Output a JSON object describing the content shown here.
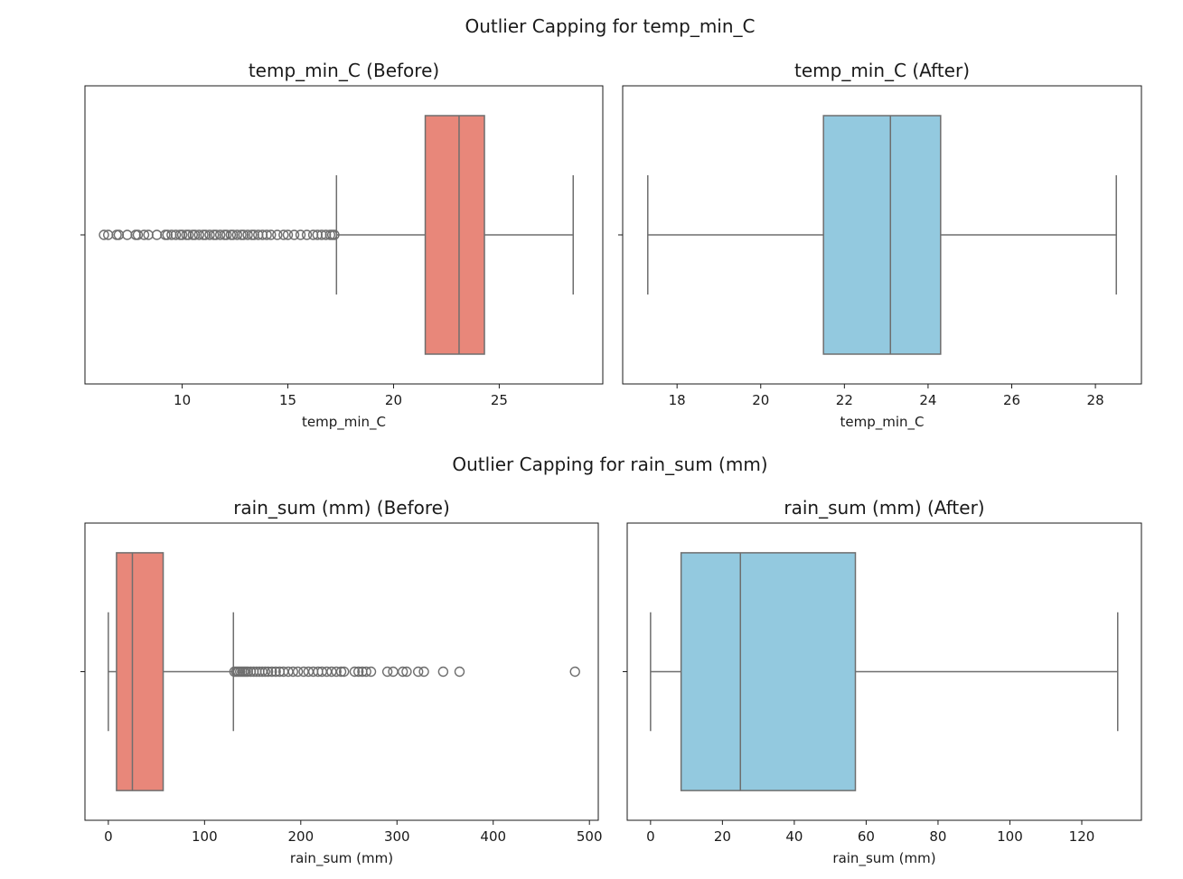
{
  "figure": {
    "sections": [
      {
        "suptitle": "Outlier Capping for temp_min_C"
      },
      {
        "suptitle": "Outlier Capping for rain_sum (mm)"
      }
    ]
  },
  "chart_data": [
    {
      "type": "box",
      "title": "temp_min_C (Before)",
      "xlabel": "temp_min_C",
      "xlim": [
        5.4,
        29.9
      ],
      "xticks": [
        10,
        15,
        20,
        25
      ],
      "color": "#e8877a",
      "box": {
        "whisker_low": 17.3,
        "q1": 21.5,
        "median": 23.1,
        "q3": 24.3,
        "whisker_high": 28.5
      },
      "outliers": [
        6.3,
        6.5,
        6.9,
        7.0,
        7.4,
        7.8,
        7.9,
        8.2,
        8.4,
        8.8,
        9.2,
        9.3,
        9.5,
        9.7,
        9.9,
        10.0,
        10.2,
        10.3,
        10.5,
        10.6,
        10.8,
        11.0,
        11.1,
        11.3,
        11.5,
        11.6,
        11.8,
        12.0,
        12.1,
        12.3,
        12.4,
        12.6,
        12.8,
        12.9,
        13.1,
        13.3,
        13.4,
        13.6,
        13.8,
        14.0,
        14.2,
        14.5,
        14.8,
        15.0,
        15.3,
        15.6,
        15.9,
        16.2,
        16.4,
        16.6,
        16.8,
        17.0,
        17.1,
        17.2
      ]
    },
    {
      "type": "box",
      "title": "temp_min_C (After)",
      "xlabel": "temp_min_C",
      "xlim": [
        16.7,
        29.1
      ],
      "xticks": [
        18,
        20,
        22,
        24,
        26,
        28
      ],
      "color": "#93c9df",
      "box": {
        "whisker_low": 17.3,
        "q1": 21.5,
        "median": 23.1,
        "q3": 24.3,
        "whisker_high": 28.5
      },
      "outliers": []
    },
    {
      "type": "box",
      "title": "rain_sum (mm) (Before)",
      "xlabel": "rain_sum (mm)",
      "xlim": [
        -24.3,
        509.2
      ],
      "xticks": [
        0,
        100,
        200,
        300,
        400,
        500
      ],
      "color": "#e8877a",
      "box": {
        "whisker_low": 0,
        "q1": 8.5,
        "median": 25,
        "q3": 57,
        "whisker_high": 130
      },
      "outliers": [
        131,
        133,
        135,
        137,
        139,
        141,
        143,
        145,
        148,
        151,
        154,
        157,
        160,
        163,
        166,
        170,
        174,
        178,
        182,
        187,
        192,
        197,
        203,
        208,
        213,
        218,
        222,
        227,
        232,
        237,
        242,
        245,
        256,
        260,
        264,
        268,
        273,
        290,
        296,
        306,
        310,
        322,
        328,
        348,
        365,
        485
      ]
    },
    {
      "type": "box",
      "title": "rain_sum (mm) (After)",
      "xlabel": "rain_sum (mm)",
      "xlim": [
        -6.5,
        136.6
      ],
      "xticks": [
        0,
        20,
        40,
        60,
        80,
        100,
        120
      ],
      "color": "#93c9df",
      "box": {
        "whisker_low": 0,
        "q1": 8.5,
        "median": 25,
        "q3": 57,
        "whisker_high": 130
      },
      "outliers": []
    }
  ]
}
